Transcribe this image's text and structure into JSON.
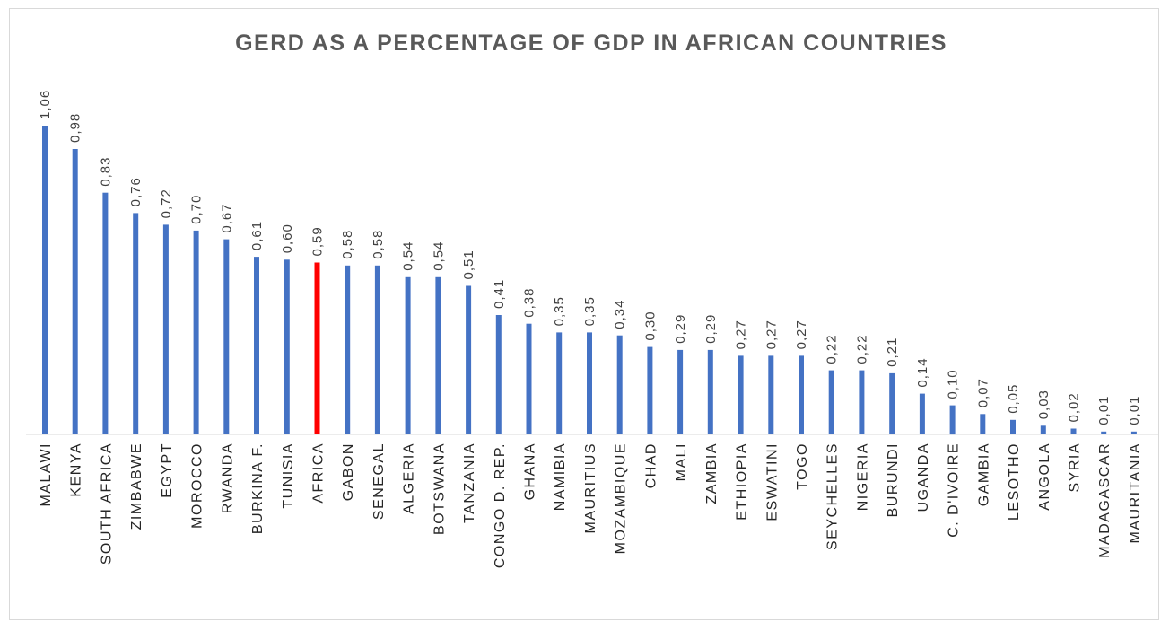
{
  "chart_data": {
    "type": "bar",
    "title": "GERD AS A PERCENTAGE OF GDP IN AFRICAN COUNTRIES",
    "categories": [
      "MALAWI",
      "KENYA",
      "SOUTH AFRICA",
      "ZIMBABWE",
      "EGYPT",
      "MOROCCO",
      "RWANDA",
      "BURKINA F.",
      "TUNISIA",
      "AFRICA",
      "GABON",
      "SENEGAL",
      "ALGERIA",
      "BOTSWANA",
      "TANZANIA",
      "CONGO D. REP.",
      "GHANA",
      "NAMIBIA",
      "MAURITIUS",
      "MOZAMBIQUE",
      "CHAD",
      "MALI",
      "ZAMBIA",
      "ETHIOPIA",
      "ESWATINI",
      "TOGO",
      "SEYCHELLES",
      "NIGERIA",
      "BURUNDI",
      "UGANDA",
      "C. D'IVOIRE",
      "GAMBIA",
      "LESOTHO",
      "ANGOLA",
      "SYRIA",
      "MADAGASCAR",
      "MAURITANIA"
    ],
    "values": [
      1.06,
      0.98,
      0.83,
      0.76,
      0.72,
      0.7,
      0.67,
      0.61,
      0.6,
      0.59,
      0.58,
      0.58,
      0.54,
      0.54,
      0.51,
      0.41,
      0.38,
      0.35,
      0.35,
      0.34,
      0.3,
      0.29,
      0.29,
      0.27,
      0.27,
      0.27,
      0.22,
      0.22,
      0.21,
      0.14,
      0.1,
      0.07,
      0.05,
      0.03,
      0.02,
      0.01,
      0.01
    ],
    "value_labels": [
      "1,06",
      "0,98",
      "0,83",
      "0,76",
      "0,72",
      "0,70",
      "0,67",
      "0,61",
      "0,60",
      "0,59",
      "0,58",
      "0,58",
      "0,54",
      "0,54",
      "0,51",
      "0,41",
      "0,38",
      "0,35",
      "0,35",
      "0,34",
      "0,30",
      "0,29",
      "0,29",
      "0,27",
      "0,27",
      "0,27",
      "0,22",
      "0,22",
      "0,21",
      "0,14",
      "0,10",
      "0,07",
      "0,05",
      "0,03",
      "0,02",
      "0,01",
      "0,01"
    ],
    "highlight_category": "AFRICA",
    "ylim": [
      0,
      1.1
    ],
    "grid": false,
    "legend": "none",
    "colors": {
      "bar": "#4472c4",
      "highlight": "#ff0000",
      "axis": "#d9d9d9",
      "title": "#595959"
    }
  }
}
